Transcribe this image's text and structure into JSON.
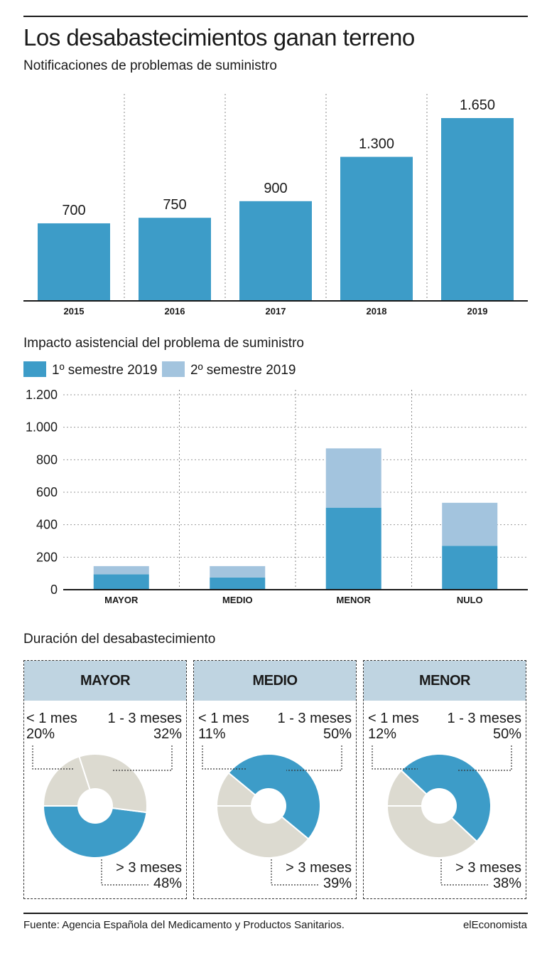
{
  "header": {
    "title": "Los desabastecimientos ganan terreno",
    "subtitle": "Notificaciones de problemas de suministro"
  },
  "chart_data": [
    {
      "type": "bar",
      "title": "Notificaciones de problemas de suministro",
      "categories": [
        "2015",
        "2016",
        "2017",
        "2018",
        "2019"
      ],
      "values": [
        700,
        750,
        900,
        1300,
        1650
      ],
      "value_labels": [
        "700",
        "750",
        "900",
        "1.300",
        "1.650"
      ],
      "ylim": [
        0,
        1650
      ],
      "grid": "vertical dotted separators",
      "color": "#3d9cc8"
    },
    {
      "type": "bar",
      "stacked": true,
      "title": "Impacto asistencial del problema de suministro",
      "categories": [
        "MAYOR",
        "MEDIO",
        "MENOR",
        "NULO"
      ],
      "series": [
        {
          "name": "1º semestre 2019",
          "values": [
            95,
            75,
            505,
            270
          ],
          "color": "#3d9cc8"
        },
        {
          "name": "2º semestre 2019",
          "values": [
            50,
            70,
            365,
            265
          ],
          "color": "#a3c4de"
        }
      ],
      "ylim": [
        0,
        1200
      ],
      "yticks": [
        0,
        200,
        400,
        600,
        800,
        1000,
        1200
      ],
      "ytick_labels": [
        "0",
        "200",
        "400",
        "600",
        "800",
        "1.000",
        "1.200"
      ],
      "grid": true,
      "legend": "top-left"
    },
    {
      "type": "pie",
      "title": "MAYOR",
      "categories": [
        "< 1 mes",
        "1 - 3 meses",
        "> 3 meses"
      ],
      "values": [
        20,
        32,
        48
      ]
    },
    {
      "type": "pie",
      "title": "MEDIO",
      "categories": [
        "< 1 mes",
        "1 - 3 meses",
        "> 3 meses"
      ],
      "values": [
        11,
        50,
        39
      ]
    },
    {
      "type": "pie",
      "title": "MENOR",
      "categories": [
        "< 1 mes",
        "1 - 3 meses",
        "> 3 meses"
      ],
      "values": [
        12,
        50,
        38
      ]
    }
  ],
  "sections": {
    "impact_title": "Impacto asistencial del problema de suministro",
    "duration_title": "Duración del desabastecimiento"
  },
  "donuts": [
    {
      "title": "MAYOR",
      "lt1_label": "< 1 mes",
      "lt1_pct": "20%",
      "mid_label": "1 - 3 meses",
      "mid_pct": "32%",
      "gt3_label": "> 3 meses",
      "gt3_pct": "48%"
    },
    {
      "title": "MEDIO",
      "lt1_label": "< 1 mes",
      "lt1_pct": "11%",
      "mid_label": "1 - 3 meses",
      "mid_pct": "50%",
      "gt3_label": "> 3 meses",
      "gt3_pct": "39%"
    },
    {
      "title": "MENOR",
      "lt1_label": "< 1 mes",
      "lt1_pct": "12%",
      "mid_label": "1 - 3 meses",
      "mid_pct": "50%",
      "gt3_label": "> 3 meses",
      "gt3_pct": "38%"
    }
  ],
  "colors": {
    "blue": "#3d9cc8",
    "light_blue": "#a3c4de",
    "beige": "#dcdad0",
    "header_bg": "#bfd4e1"
  },
  "footer": {
    "source": "Fuente: Agencia Española del Medicamento y Productos Sanitarios.",
    "brand": "elEconomista"
  }
}
